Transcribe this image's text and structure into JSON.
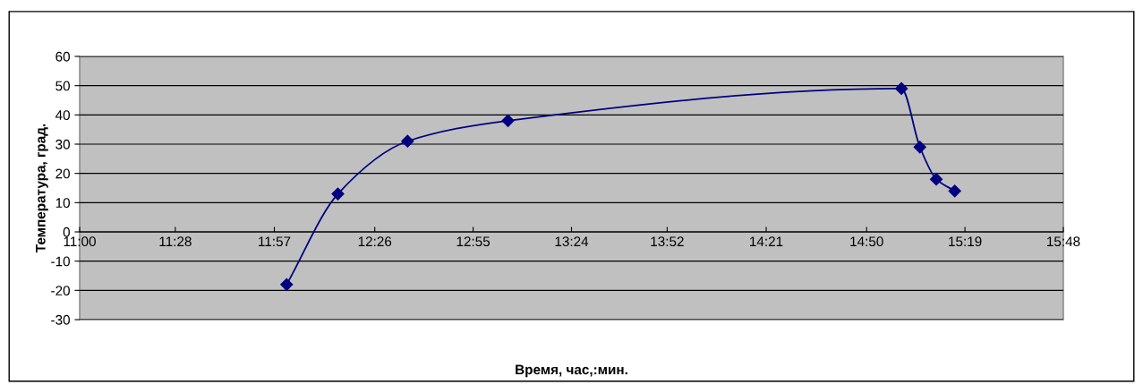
{
  "chart_data": {
    "type": "line",
    "xlabel": "Время, час,:мин.",
    "ylabel": "Температура, град.",
    "x": [
      12.01,
      12.26,
      12.6,
      13.09,
      15.01,
      15.1,
      15.18,
      15.27
    ],
    "series": [
      {
        "color": "#000080",
        "values": [
          -18,
          13,
          31,
          38,
          49,
          29,
          18,
          14
        ]
      }
    ],
    "xlim": [
      11.0,
      15.8
    ],
    "xticks": [
      {
        "value": 11.0,
        "label": "11:00"
      },
      {
        "value": 11.4667,
        "label": "11:28"
      },
      {
        "value": 11.95,
        "label": "11:57"
      },
      {
        "value": 12.44,
        "label": "12:26"
      },
      {
        "value": 12.92,
        "label": "12:55"
      },
      {
        "value": 13.4,
        "label": "13:24"
      },
      {
        "value": 13.8667,
        "label": "13:52"
      },
      {
        "value": 14.35,
        "label": "14:21"
      },
      {
        "value": 14.84,
        "label": "14:50"
      },
      {
        "value": 15.32,
        "label": "15:19"
      },
      {
        "value": 15.8,
        "label": "15:48"
      }
    ],
    "ylim": [
      -30,
      60
    ],
    "yticks": [
      -30,
      -20,
      -10,
      0,
      10,
      20,
      30,
      40,
      50,
      60
    ],
    "grid": "y",
    "marker": "diamond",
    "line_style": "solid",
    "legend": false
  }
}
